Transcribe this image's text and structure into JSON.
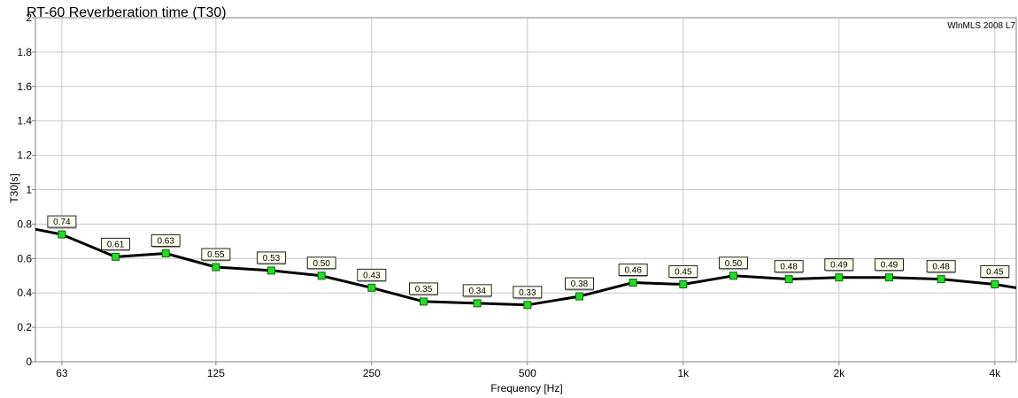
{
  "chart_data": {
    "type": "line",
    "title": "RT-60 Reverberation time (T30)",
    "watermark": "WlnMLS 2008 L7",
    "xlabel": "Frequency [Hz]",
    "ylabel": "T30[s]",
    "xscale": "log",
    "xlim": [
      56,
      4400
    ],
    "ylim": [
      0,
      2
    ],
    "yticks": [
      0,
      0.2,
      0.4,
      0.6,
      0.8,
      1,
      1.2,
      1.4,
      1.6,
      1.8,
      2
    ],
    "ytick_labels": [
      "0",
      "0.2",
      "0.4",
      "0.6",
      "0.8",
      "1",
      "1.2",
      "1.4",
      "1.6",
      "1.8",
      "2"
    ],
    "xticks": [
      63,
      125,
      250,
      500,
      1000,
      2000,
      4000
    ],
    "xtick_labels": [
      "63",
      "125",
      "250",
      "500",
      "1k",
      "2k",
      "4k"
    ],
    "grid": true,
    "series": [
      {
        "line_color": "#000000",
        "marker_color": "#22dd22",
        "x": [
          63,
          80,
          100,
          125,
          160,
          200,
          250,
          315,
          400,
          500,
          630,
          800,
          1000,
          1250,
          1600,
          2000,
          2500,
          3150,
          4000
        ],
        "values": [
          0.74,
          0.61,
          0.63,
          0.55,
          0.53,
          0.5,
          0.43,
          0.35,
          0.34,
          0.33,
          0.38,
          0.46,
          0.45,
          0.5,
          0.48,
          0.49,
          0.49,
          0.48,
          0.45
        ],
        "labels": [
          "0.74",
          "0.61",
          "0.63",
          "0.55",
          "0.53",
          "0.50",
          "0.43",
          "0.35",
          "0.34",
          "0.33",
          "0.38",
          "0.46",
          "0.45",
          "0.50",
          "0.48",
          "0.49",
          "0.49",
          "0.48",
          "0.45"
        ],
        "line_start": [
          56,
          0.77
        ],
        "line_end": [
          4400,
          0.43
        ]
      }
    ]
  }
}
